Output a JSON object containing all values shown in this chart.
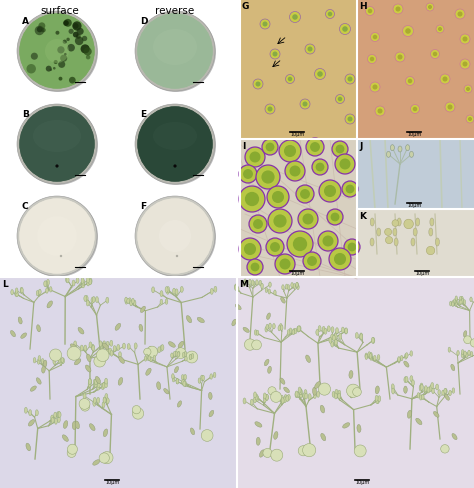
{
  "surface_label": "surface",
  "reverse_label": "reverse",
  "fig_bg": "#f5f5f5",
  "panel_bg": {
    "G": "#d4b87a",
    "H": "#d4a07a",
    "I": "#d8d0c0",
    "J": "#c0ccd8",
    "K": "#e0dcd0",
    "L": "#dcd8e8",
    "M": "#e4dce8"
  },
  "dish_colors": {
    "A": {
      "fill": "#7aaa60",
      "rim": "#b8b8b0"
    },
    "B": {
      "fill": "#3a5848",
      "rim": "#b8b8b0"
    },
    "C": {
      "fill": "#e8e4d8",
      "rim": "#c8c8c0"
    },
    "D": {
      "fill": "#9ab898",
      "rim": "#b8b8b0"
    },
    "E": {
      "fill": "#2a4838",
      "rim": "#b8b8b0"
    },
    "F": {
      "fill": "#e4e0d4",
      "rim": "#c8c8c0"
    }
  },
  "scale_bar": "10μm"
}
